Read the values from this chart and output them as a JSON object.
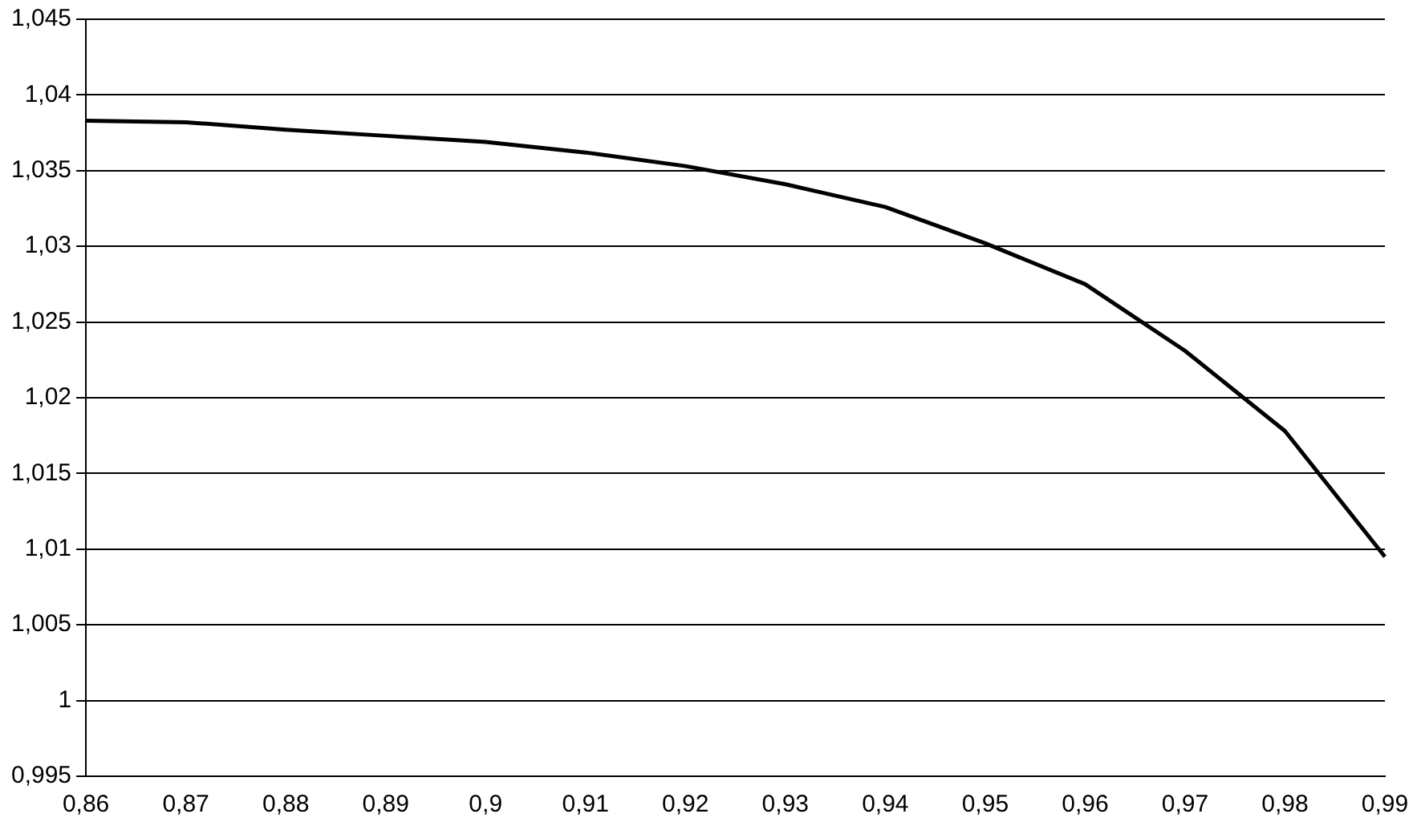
{
  "chart_data": {
    "type": "line",
    "categories": [
      "0,86",
      "0,87",
      "0,88",
      "0,89",
      "0,9",
      "0,91",
      "0,92",
      "0,93",
      "0,94",
      "0,95",
      "0,96",
      "0,97",
      "0,98",
      "0,99"
    ],
    "series": [
      {
        "color": "#000000",
        "values": [
          1.0383,
          1.0382,
          1.0377,
          1.0373,
          1.0369,
          1.0362,
          1.0353,
          1.0341,
          1.0326,
          1.0302,
          1.0275,
          1.0231,
          1.0178,
          1.0095
        ]
      }
    ],
    "ylim": [
      0.995,
      1.045
    ],
    "yticks": [
      {
        "value": 0.995,
        "label": "0,995"
      },
      {
        "value": 1,
        "label": "1"
      },
      {
        "value": 1.005,
        "label": "1,005"
      },
      {
        "value": 1.01,
        "label": "1,01"
      },
      {
        "value": 1.015,
        "label": "1,015"
      },
      {
        "value": 1.02,
        "label": "1,02"
      },
      {
        "value": 1.025,
        "label": "1,025"
      },
      {
        "value": 1.03,
        "label": "1,03"
      },
      {
        "value": 1.035,
        "label": "1,035"
      },
      {
        "value": 1.04,
        "label": "1,04"
      },
      {
        "value": 1.045,
        "label": "1,045"
      }
    ],
    "grid": "y",
    "legend": false,
    "marker": "none",
    "line_style": "solid"
  }
}
